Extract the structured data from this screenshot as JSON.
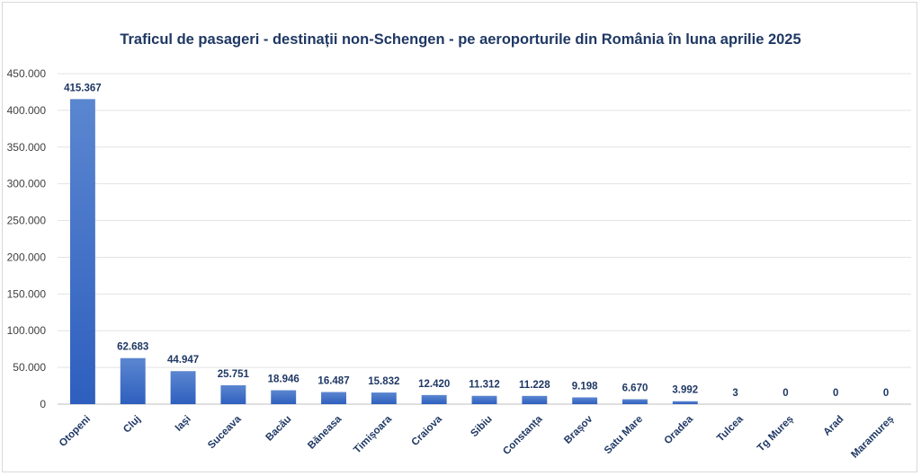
{
  "chart_data": {
    "type": "bar",
    "title": "Traficul de pasageri - destinații non-Schengen - pe aeroporturile din România în luna aprilie 2025",
    "xlabel": "",
    "ylabel": "",
    "ylim": [
      0,
      450000
    ],
    "yticks": [
      "0",
      "50.000",
      "100.000",
      "150.000",
      "200.000",
      "250.000",
      "300.000",
      "350.000",
      "400.000",
      "450.000"
    ],
    "grid": true,
    "legend": "none",
    "categories": [
      "Otopeni",
      "Cluj",
      "Iași",
      "Suceava",
      "Bacău",
      "Băneasa",
      "Timișoara",
      "Craiova",
      "Sibiu",
      "Constanța",
      "Brașov",
      "Satu Mare",
      "Oradea",
      "Tulcea",
      "Tg Mureș",
      "Arad",
      "Maramureș"
    ],
    "values": [
      415367,
      62683,
      44947,
      25751,
      18946,
      16487,
      15832,
      12420,
      11312,
      11228,
      9198,
      6670,
      3992,
      3,
      0,
      0,
      0
    ],
    "data_labels": [
      "415.367",
      "62.683",
      "44.947",
      "25.751",
      "18.946",
      "16.487",
      "15.832",
      "12.420",
      "11.312",
      "11.228",
      "9.198",
      "6.670",
      "3.992",
      "3",
      "0",
      "0",
      "0"
    ],
    "colors": {
      "bar_top": "#5b86d0",
      "bar_bottom": "#2e5fbe",
      "text": "#1f3864",
      "grid": "#e3e3e3"
    }
  }
}
